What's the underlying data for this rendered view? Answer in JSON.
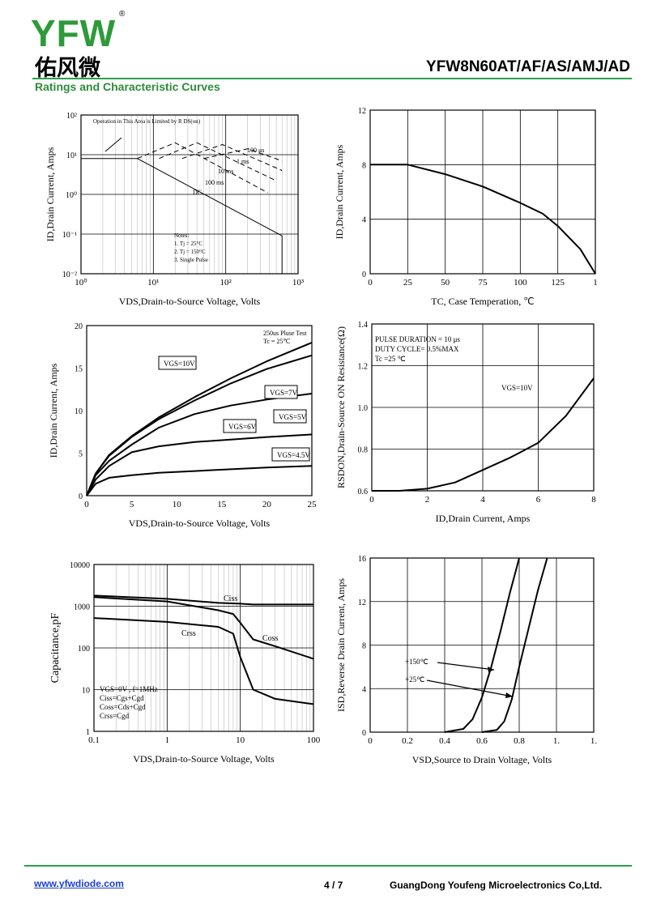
{
  "header": {
    "logo": "YFW",
    "logo_cn": "佑风微",
    "part_number": "YFW8N60AT/AF/AS/AMJ/AD",
    "section_title": "Ratings and Characteristic Curves"
  },
  "footer": {
    "website": "www.yfwdiode.com",
    "page": "4 / 7",
    "company": "GuangDong Youfeng Microelectronics Co,Ltd."
  },
  "colors": {
    "accent_green": "#2aa14a",
    "logo_green": "#2e9a3a",
    "logo_orange": "#f29a1d",
    "link_blue": "#1a3fd1"
  },
  "chart_data": [
    {
      "id": "soa",
      "type": "line",
      "xlabel": "VDS,Drain-to-Source Voltage, Volts",
      "ylabel": "ID,Drain Current, Amps",
      "x_scale": "log",
      "y_scale": "log",
      "xlim": [
        1,
        1000
      ],
      "ylim": [
        0.01,
        100
      ],
      "x_ticks": [
        "10⁰",
        "10¹",
        "10²",
        "10³"
      ],
      "y_ticks": [
        "10²",
        "10¹",
        "10⁰",
        "10⁻¹",
        "10⁻²"
      ],
      "annotations": [
        "Operation in This Area is Limited by R DS(on)",
        "100 μs",
        "1 ms",
        "10 ms",
        "100 ms",
        "DC"
      ],
      "notes": [
        "Notes:",
        "1. Tj = 25°C",
        "2. Tj = 150°C",
        "3. Single Pulse"
      ],
      "series": [
        {
          "name": "DC",
          "x": [
            1,
            6,
            600,
            600
          ],
          "y": [
            8,
            8,
            0.09,
            0.01
          ]
        },
        {
          "name": "100 ms",
          "x": [
            6,
            20,
            380
          ],
          "y": [
            8,
            20,
            1.1
          ]
        },
        {
          "name": "10 ms",
          "x": [
            12,
            40,
            500
          ],
          "y": [
            8,
            20,
            2.2
          ]
        },
        {
          "name": "1 ms",
          "x": [
            25,
            90,
            600
          ],
          "y": [
            8,
            18,
            4
          ]
        },
        {
          "name": "100 μs",
          "x": [
            50,
            200,
            600
          ],
          "y": [
            8,
            14,
            7
          ]
        }
      ],
      "grid": true
    },
    {
      "id": "derating",
      "type": "line",
      "xlabel": "TC, Case Temperation, ℃",
      "ylabel": "ID,Drain Current, Amps",
      "xlim": [
        0,
        150
      ],
      "ylim": [
        0,
        12
      ],
      "x_ticks": [
        "0",
        "25",
        "50",
        "75",
        "100",
        "125",
        "1"
      ],
      "y_ticks": [
        "0",
        "4",
        "8",
        "12"
      ],
      "series": [
        {
          "name": "",
          "x": [
            0,
            25,
            50,
            75,
            100,
            115,
            125,
            140,
            150
          ],
          "y": [
            8,
            8,
            7.3,
            6.4,
            5.2,
            4.4,
            3.5,
            1.8,
            0
          ]
        }
      ],
      "grid": true
    },
    {
      "id": "output",
      "type": "line",
      "xlabel": "VDS,Drain-to-Source Voltage, Volts",
      "ylabel": "ID,Drain Current, Amps",
      "xlim": [
        0,
        25
      ],
      "ylim": [
        0,
        20
      ],
      "x_ticks": [
        "0",
        "5",
        "10",
        "15",
        "20",
        "25"
      ],
      "y_ticks": [
        "0",
        "5",
        "10",
        "15",
        "20"
      ],
      "annotations": [
        "250us Pluse Test",
        "Tc = 25℃"
      ],
      "series": [
        {
          "name": "VGS=10V",
          "x": [
            0,
            1,
            2.5,
            5,
            8,
            12,
            16,
            20,
            25
          ],
          "y": [
            0,
            2.6,
            4.8,
            7,
            9.2,
            11.6,
            13.8,
            15.8,
            18
          ]
        },
        {
          "name": "VGS=7V",
          "x": [
            0,
            1,
            2.5,
            5,
            8,
            12,
            16,
            20,
            25
          ],
          "y": [
            0,
            2.6,
            4.7,
            6.9,
            9,
            11.2,
            13.2,
            14.9,
            16.5
          ]
        },
        {
          "name": "VGS=6V",
          "x": [
            0,
            1,
            2.5,
            5,
            8,
            12,
            16,
            20,
            25
          ],
          "y": [
            0,
            2.4,
            4.1,
            6,
            8,
            9.6,
            10.6,
            11.3,
            12
          ]
        },
        {
          "name": "VGS=5V",
          "x": [
            0,
            1,
            2.5,
            5,
            8,
            12,
            16,
            20,
            25
          ],
          "y": [
            0,
            1.9,
            3.5,
            5.1,
            5.8,
            6.3,
            6.6,
            6.9,
            7.2
          ]
        },
        {
          "name": "VGS=4.5V",
          "x": [
            0,
            1,
            2.5,
            5,
            8,
            12,
            16,
            20,
            25
          ],
          "y": [
            0,
            1.4,
            2.1,
            2.4,
            2.7,
            2.9,
            3.1,
            3.3,
            3.5
          ]
        }
      ],
      "grid": false
    },
    {
      "id": "rdson",
      "type": "line",
      "xlabel": "ID,Drain Current, Amps",
      "ylabel": "RSDON,Drain-Source ON Resistance(Ω)",
      "xlim": [
        0,
        8
      ],
      "ylim": [
        0.6,
        1.4
      ],
      "x_ticks": [
        "0",
        "2",
        "4",
        "6",
        "8"
      ],
      "y_ticks": [
        "0.6",
        "0.8",
        "1.0",
        "1.2",
        "1.4"
      ],
      "annotations": [
        "PULSE   DURATION = 10 μs",
        "DUTY   CYCLE= 0.5%MAX",
        "Tc =25 ℃",
        "VGS=10V"
      ],
      "series": [
        {
          "name": "VGS=10V",
          "x": [
            0,
            1,
            2,
            3,
            4,
            5,
            6,
            7,
            8
          ],
          "y": [
            0.6,
            0.6,
            0.61,
            0.64,
            0.7,
            0.76,
            0.83,
            0.96,
            1.14
          ]
        }
      ],
      "grid": true
    },
    {
      "id": "capacitance",
      "type": "line",
      "xlabel": "VDS,Drain-to-Source Voltage, Volts",
      "ylabel": "Capacitance,pF",
      "x_scale": "log",
      "y_scale": "log",
      "xlim": [
        0.1,
        100
      ],
      "ylim": [
        1,
        10000
      ],
      "x_ticks": [
        "0.1",
        "1",
        "10",
        "100"
      ],
      "y_ticks": [
        "1",
        "10",
        "100",
        "1000",
        "10000"
      ],
      "notes": [
        "VGS=0V , f=1MHz",
        "Ciss=Cgs+Cgd",
        "Coss=Cds+Cgd",
        "Crss=Cgd"
      ],
      "series": [
        {
          "name": "Ciss",
          "x": [
            0.1,
            1,
            5,
            10,
            15,
            30,
            100
          ],
          "y": [
            1800,
            1500,
            1200,
            1150,
            1100,
            1100,
            1100
          ]
        },
        {
          "name": "Coss",
          "x": [
            0.1,
            1,
            5,
            8,
            10,
            15,
            30,
            100
          ],
          "y": [
            1650,
            1300,
            800,
            650,
            400,
            160,
            110,
            55
          ]
        },
        {
          "name": "Crss",
          "x": [
            0.1,
            1,
            5,
            8,
            10,
            15,
            30,
            100
          ],
          "y": [
            520,
            420,
            320,
            220,
            60,
            10,
            6,
            4.5
          ]
        }
      ],
      "grid": true
    },
    {
      "id": "body_diode",
      "type": "line",
      "xlabel": "VSD,Source to Drain Voltage, Volts",
      "ylabel": "ISD,Reverse Drain Current, Amps",
      "xlim": [
        0,
        1.2
      ],
      "ylim": [
        0,
        16
      ],
      "x_ticks": [
        "0",
        "0.2",
        "0.4",
        "0.6",
        "0.8",
        "1.",
        "1."
      ],
      "y_ticks": [
        "0",
        "4",
        "8",
        "12",
        "16"
      ],
      "annotations": [
        "+150℃",
        "+25℃"
      ],
      "series": [
        {
          "name": "+150℃",
          "x": [
            0.4,
            0.5,
            0.55,
            0.6,
            0.65,
            0.7,
            0.75,
            0.8
          ],
          "y": [
            0,
            0.3,
            1.2,
            3.2,
            6,
            9.3,
            12.8,
            16
          ]
        },
        {
          "name": "+25℃",
          "x": [
            0.6,
            0.68,
            0.72,
            0.76,
            0.8,
            0.85,
            0.9,
            0.95
          ],
          "y": [
            0,
            0.2,
            1,
            3,
            6,
            9.5,
            13,
            16
          ]
        }
      ],
      "grid": true
    }
  ]
}
